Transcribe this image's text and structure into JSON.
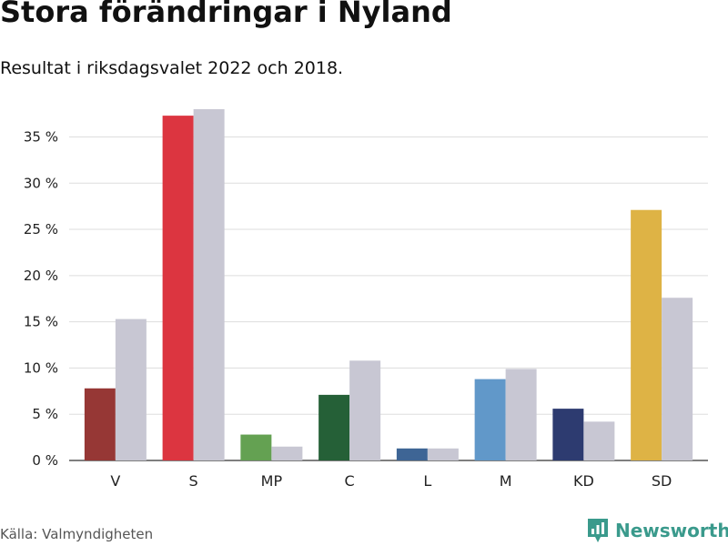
{
  "header": {
    "title": "Stora förändringar i Nyland",
    "subtitle": "Resultat i riksdagsvalet 2022 och 2018."
  },
  "footer": {
    "source": "Källa: Valmyndigheten",
    "brand": "Newsworthy",
    "brand_icon": "newsworthy-logo-icon",
    "brand_color": "#3a9a8c"
  },
  "chart_data": {
    "type": "bar",
    "title": "",
    "xlabel": "",
    "ylabel": "",
    "ylim": [
      0,
      38
    ],
    "yticks": [
      0,
      5,
      10,
      15,
      20,
      25,
      30,
      35
    ],
    "ytick_labels": [
      "0 %",
      "5 %",
      "10 %",
      "15 %",
      "20 %",
      "25 %",
      "30 %",
      "35 %"
    ],
    "grid": true,
    "legend": "none",
    "categories": [
      "V",
      "S",
      "MP",
      "C",
      "L",
      "M",
      "KD",
      "SD"
    ],
    "series": [
      {
        "values": [
          7.8,
          37.3,
          2.8,
          7.1,
          1.3,
          8.8,
          5.6,
          27.1
        ],
        "colors": [
          "#963735",
          "#dc3540",
          "#64a152",
          "#256037",
          "#3e6595",
          "#6198c9",
          "#2d3b70",
          "#deb345"
        ]
      },
      {
        "values": [
          15.3,
          38.0,
          1.5,
          10.8,
          1.3,
          9.9,
          4.2,
          17.6
        ],
        "color": "#c8c7d3"
      }
    ]
  }
}
